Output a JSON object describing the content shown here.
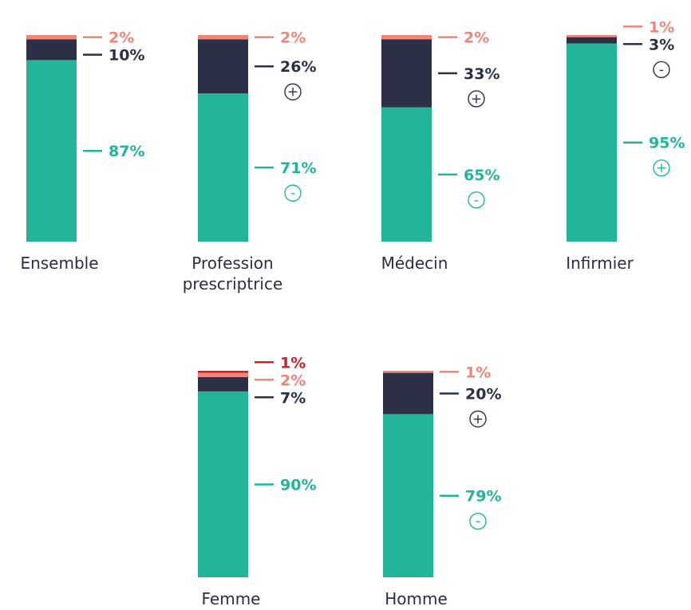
{
  "chart_data": {
    "type": "bar",
    "stacked": true,
    "ylim": [
      0,
      100
    ],
    "legend": "none",
    "grid": false,
    "series": [
      {
        "key": "teal",
        "values": [
          87,
          71,
          65,
          95,
          90,
          79
        ]
      },
      {
        "key": "dark",
        "values": [
          10,
          26,
          33,
          3,
          7,
          20
        ]
      },
      {
        "key": "salmon",
        "values": [
          2,
          2,
          2,
          1,
          2,
          1
        ]
      },
      {
        "key": "red",
        "values": [
          0,
          0,
          0,
          0,
          1,
          0
        ]
      }
    ],
    "bars": [
      {
        "name": "ensemble",
        "label_lines": [
          "Ensemble"
        ],
        "labels": [
          {
            "series": "teal",
            "text": "87%",
            "sig": ""
          },
          {
            "series": "dark",
            "text": "10%",
            "sig": ""
          },
          {
            "series": "salmon",
            "text": "2%",
            "sig": ""
          }
        ]
      },
      {
        "name": "profession-prescriptrice",
        "label_lines": [
          "Profession",
          "prescriptrice"
        ],
        "labels": [
          {
            "series": "teal",
            "text": "71%",
            "sig": "-"
          },
          {
            "series": "dark",
            "text": "26%",
            "sig": "+"
          },
          {
            "series": "salmon",
            "text": "2%",
            "sig": ""
          }
        ]
      },
      {
        "name": "medecin",
        "label_lines": [
          "Médecin"
        ],
        "labels": [
          {
            "series": "teal",
            "text": "65%",
            "sig": "-"
          },
          {
            "series": "dark",
            "text": "33%",
            "sig": "+"
          },
          {
            "series": "salmon",
            "text": "2%",
            "sig": ""
          }
        ]
      },
      {
        "name": "infirmier",
        "label_lines": [
          "Infirmier"
        ],
        "labels": [
          {
            "series": "teal",
            "text": "95%",
            "sig": "+"
          },
          {
            "series": "dark",
            "text": "3%",
            "sig": "-"
          },
          {
            "series": "salmon",
            "text": "1%",
            "sig": ""
          }
        ]
      },
      {
        "name": "femme",
        "label_lines": [
          "Femme"
        ],
        "labels": [
          {
            "series": "teal",
            "text": "90%",
            "sig": ""
          },
          {
            "series": "dark",
            "text": "7%",
            "sig": ""
          },
          {
            "series": "salmon",
            "text": "2%",
            "sig": ""
          },
          {
            "series": "red",
            "text": "1%",
            "sig": ""
          }
        ]
      },
      {
        "name": "homme",
        "label_lines": [
          "Homme"
        ],
        "labels": [
          {
            "series": "teal",
            "text": "79%",
            "sig": "-"
          },
          {
            "series": "dark",
            "text": "20%",
            "sig": "+"
          },
          {
            "series": "salmon",
            "text": "1%",
            "sig": ""
          }
        ]
      }
    ]
  },
  "colors": {
    "teal": "#22b59a",
    "dark": "#2b3047",
    "salmon": "#f0857a",
    "red": "#cc2027",
    "text": "#2b2d42"
  }
}
